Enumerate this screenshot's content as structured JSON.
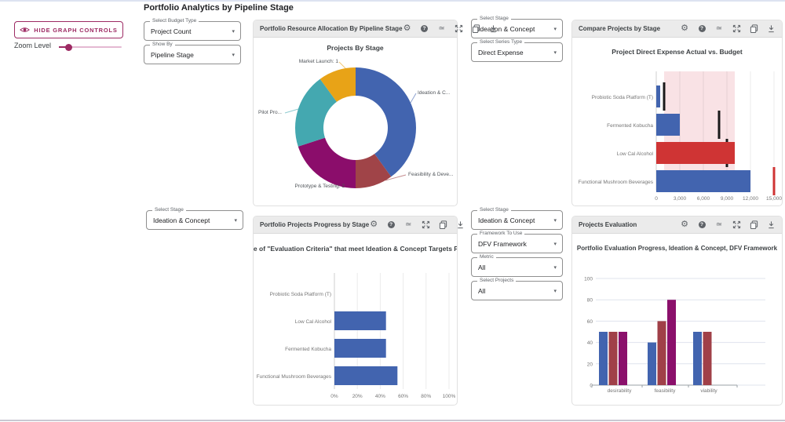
{
  "page": {
    "title": "Portfolio Analytics by Pipeline Stage"
  },
  "controls": {
    "hide_button_label": "HIDE GRAPH CONTROLS",
    "zoom_label": "Zoom Level",
    "zoom_slider_pos_pct": 16,
    "accent_color": "#9d2a63"
  },
  "header_icons": [
    "settings-icon",
    "help-icon",
    "annotations-icon",
    "fullscreen-icon",
    "copy-icon",
    "download-icon"
  ],
  "filters": [
    {
      "label": "Select Budget Type",
      "value": "Project Count"
    },
    {
      "label": "Show By",
      "value": "Pipeline Stage"
    },
    {
      "label": "Select Stage",
      "value": "Ideation & Concept"
    },
    {
      "label": "Select Series Type",
      "value": "Direct Expense"
    },
    {
      "label": "Select Stage",
      "value": "Ideation & Concept"
    },
    {
      "label": "Select Stage",
      "value": "Ideation & Concept"
    },
    {
      "label": "Framework To Use",
      "value": "DFV Framework"
    },
    {
      "label": "Metric",
      "value": "All"
    },
    {
      "label": "Select Projects",
      "value": "All"
    }
  ],
  "cards": [
    {
      "header": "Portfolio Resource Allocation By Pipeline Stage"
    },
    {
      "header": "Compare Projects by Stage"
    },
    {
      "header": "Portfolio Projects Progress by Stage"
    },
    {
      "header": "Projects Evaluation"
    }
  ],
  "chart_data": [
    {
      "type": "pie",
      "subtype": "donut",
      "title": "Projects By Stage",
      "slices": [
        {
          "display": "Ideation & C...",
          "value": 4,
          "color": "#4264af"
        },
        {
          "display": "Feasibility & Deve...",
          "value": 1,
          "color": "#a04448"
        },
        {
          "display": "Prototype & Testing: 2",
          "value": 2,
          "color": "#8b0d6b"
        },
        {
          "display": "Pilot Pro...",
          "value": 2,
          "color": "#44a8b0"
        },
        {
          "display": "Market Launch: 1",
          "value": 1,
          "color": "#e8a317"
        }
      ]
    },
    {
      "type": "bar",
      "orientation": "horizontal",
      "title": "Project Direct Expense Actual vs. Budget",
      "categories": [
        "Probiotic Soda Platform (T)",
        "Fermented Kobucha",
        "Low Cal Alcohol",
        "Functional Mushroom Beverages"
      ],
      "series": [
        {
          "name": "Actual",
          "values": [
            500,
            3000,
            10000,
            12000
          ],
          "colors": [
            "#4264af",
            "#4264af",
            "#cf3434",
            "#4264af"
          ]
        },
        {
          "name": "Budget",
          "values": [
            1000,
            8000,
            9000,
            15000
          ],
          "colors": [
            "#1a1a1a",
            "#1a1a1a",
            "#1a1a1a",
            "#cf3434"
          ],
          "style": "tick"
        }
      ],
      "band": {
        "from": 1000,
        "to": 10000,
        "color": "#f9e2e5"
      },
      "xlim": [
        0,
        15000
      ],
      "xticks": [
        0,
        3000,
        6000,
        9000,
        12000,
        15000
      ],
      "xtick_labels": [
        "0",
        "3,000",
        "6,000",
        "9,000",
        "12,000",
        "15,000"
      ]
    },
    {
      "type": "bar",
      "orientation": "horizontal",
      "title": "Percentage of \"Evaluation Criteria\" that meet Ideation & Concept Targets Per Project",
      "categories": [
        "Probiotic Soda Platform (T)",
        "Low Cal Alcohol",
        "Fermented Kobucha",
        "Functional Mushroom Beverages"
      ],
      "values": [
        0,
        45,
        45,
        55
      ],
      "bar_color": "#4264af",
      "xlim": [
        0,
        100
      ],
      "xticks": [
        0,
        20,
        40,
        60,
        80,
        100
      ],
      "xtick_labels": [
        "0%",
        "20%",
        "40%",
        "60%",
        "80%",
        "100%"
      ]
    },
    {
      "type": "bar",
      "orientation": "vertical",
      "grouped": true,
      "title": "Portfolio Evaluation Progress, Ideation & Concept, DFV Framework",
      "categories": [
        "desirability",
        "feasibility",
        "viability"
      ],
      "series": [
        {
          "color": "#4264af",
          "values": [
            50,
            40,
            50
          ]
        },
        {
          "color": "#a04048",
          "values": [
            50,
            60,
            50
          ]
        },
        {
          "color": "#8b106b",
          "values": [
            50,
            80,
            null
          ]
        }
      ],
      "ylim": [
        0,
        100
      ],
      "yticks": [
        0,
        20,
        40,
        60,
        80,
        100
      ],
      "ytick_labels": [
        "0",
        "20",
        "40",
        "60",
        "80",
        "100"
      ]
    }
  ]
}
